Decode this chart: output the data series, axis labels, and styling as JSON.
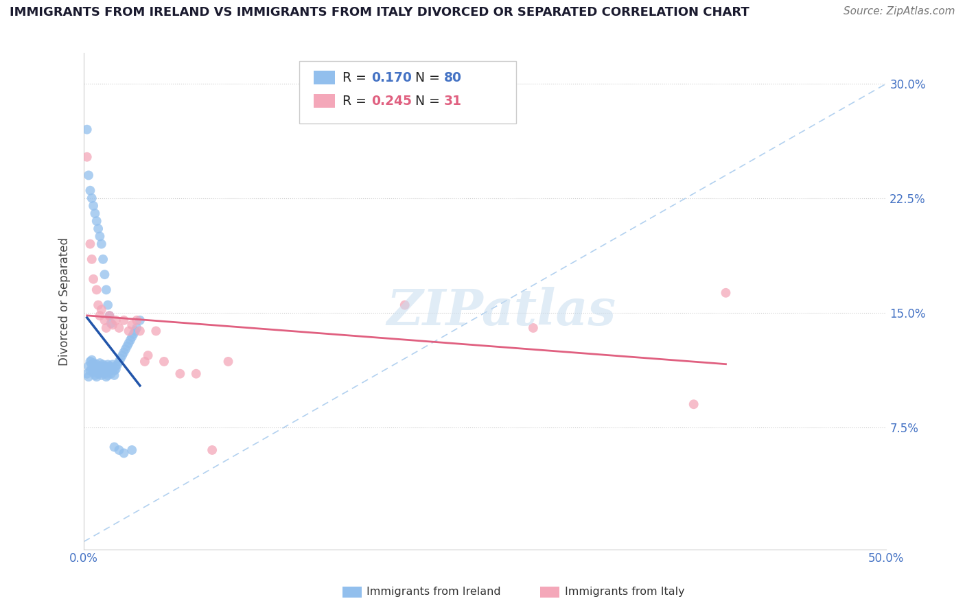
{
  "title": "IMMIGRANTS FROM IRELAND VS IMMIGRANTS FROM ITALY DIVORCED OR SEPARATED CORRELATION CHART",
  "source": "Source: ZipAtlas.com",
  "ylabel": "Divorced or Separated",
  "xlim": [
    0,
    0.5
  ],
  "ylim": [
    -0.005,
    0.32
  ],
  "xticks": [
    0.0,
    0.1,
    0.2,
    0.3,
    0.4,
    0.5
  ],
  "xtick_labels": [
    "0.0%",
    "",
    "",
    "",
    "",
    "50.0%"
  ],
  "yticks": [
    0.0,
    0.075,
    0.15,
    0.225,
    0.3
  ],
  "ytick_labels": [
    "",
    "7.5%",
    "15.0%",
    "22.5%",
    "30.0%"
  ],
  "ireland_color": "#92BFED",
  "italy_color": "#F4A7B9",
  "ireland_line_color": "#2255AA",
  "italy_line_color": "#E06080",
  "ref_line_color": "#AACCEE",
  "legend_r_ireland": "0.170",
  "legend_n_ireland": "80",
  "legend_r_italy": "0.245",
  "legend_n_italy": "31",
  "watermark": "ZIPatlas",
  "ireland_x": [
    0.002,
    0.003,
    0.003,
    0.004,
    0.004,
    0.005,
    0.005,
    0.005,
    0.006,
    0.006,
    0.006,
    0.007,
    0.007,
    0.007,
    0.008,
    0.008,
    0.008,
    0.009,
    0.009,
    0.009,
    0.01,
    0.01,
    0.01,
    0.011,
    0.011,
    0.011,
    0.012,
    0.012,
    0.013,
    0.013,
    0.013,
    0.014,
    0.014,
    0.015,
    0.015,
    0.015,
    0.016,
    0.016,
    0.017,
    0.017,
    0.018,
    0.018,
    0.019,
    0.019,
    0.02,
    0.02,
    0.021,
    0.022,
    0.023,
    0.024,
    0.025,
    0.026,
    0.027,
    0.028,
    0.029,
    0.03,
    0.031,
    0.032,
    0.033,
    0.035,
    0.002,
    0.003,
    0.004,
    0.005,
    0.006,
    0.007,
    0.008,
    0.009,
    0.01,
    0.011,
    0.012,
    0.013,
    0.014,
    0.015,
    0.016,
    0.017,
    0.019,
    0.022,
    0.025,
    0.03
  ],
  "ireland_y": [
    0.11,
    0.115,
    0.108,
    0.112,
    0.118,
    0.113,
    0.116,
    0.119,
    0.114,
    0.117,
    0.111,
    0.115,
    0.112,
    0.109,
    0.113,
    0.116,
    0.108,
    0.112,
    0.115,
    0.11,
    0.114,
    0.117,
    0.111,
    0.115,
    0.112,
    0.109,
    0.113,
    0.116,
    0.112,
    0.115,
    0.11,
    0.114,
    0.108,
    0.113,
    0.116,
    0.109,
    0.112,
    0.115,
    0.114,
    0.11,
    0.113,
    0.116,
    0.112,
    0.109,
    0.115,
    0.113,
    0.116,
    0.118,
    0.12,
    0.122,
    0.124,
    0.126,
    0.128,
    0.13,
    0.132,
    0.134,
    0.136,
    0.138,
    0.14,
    0.145,
    0.27,
    0.24,
    0.23,
    0.225,
    0.22,
    0.215,
    0.21,
    0.205,
    0.2,
    0.195,
    0.185,
    0.175,
    0.165,
    0.155,
    0.148,
    0.143,
    0.062,
    0.06,
    0.058,
    0.06
  ],
  "italy_x": [
    0.002,
    0.004,
    0.005,
    0.006,
    0.008,
    0.009,
    0.01,
    0.011,
    0.013,
    0.014,
    0.016,
    0.018,
    0.02,
    0.022,
    0.025,
    0.028,
    0.03,
    0.033,
    0.035,
    0.038,
    0.04,
    0.045,
    0.05,
    0.06,
    0.07,
    0.08,
    0.09,
    0.2,
    0.28,
    0.38,
    0.4
  ],
  "italy_y": [
    0.252,
    0.195,
    0.185,
    0.172,
    0.165,
    0.155,
    0.148,
    0.152,
    0.145,
    0.14,
    0.148,
    0.142,
    0.145,
    0.14,
    0.145,
    0.138,
    0.142,
    0.145,
    0.138,
    0.118,
    0.122,
    0.138,
    0.118,
    0.11,
    0.11,
    0.06,
    0.118,
    0.155,
    0.14,
    0.09,
    0.163
  ]
}
